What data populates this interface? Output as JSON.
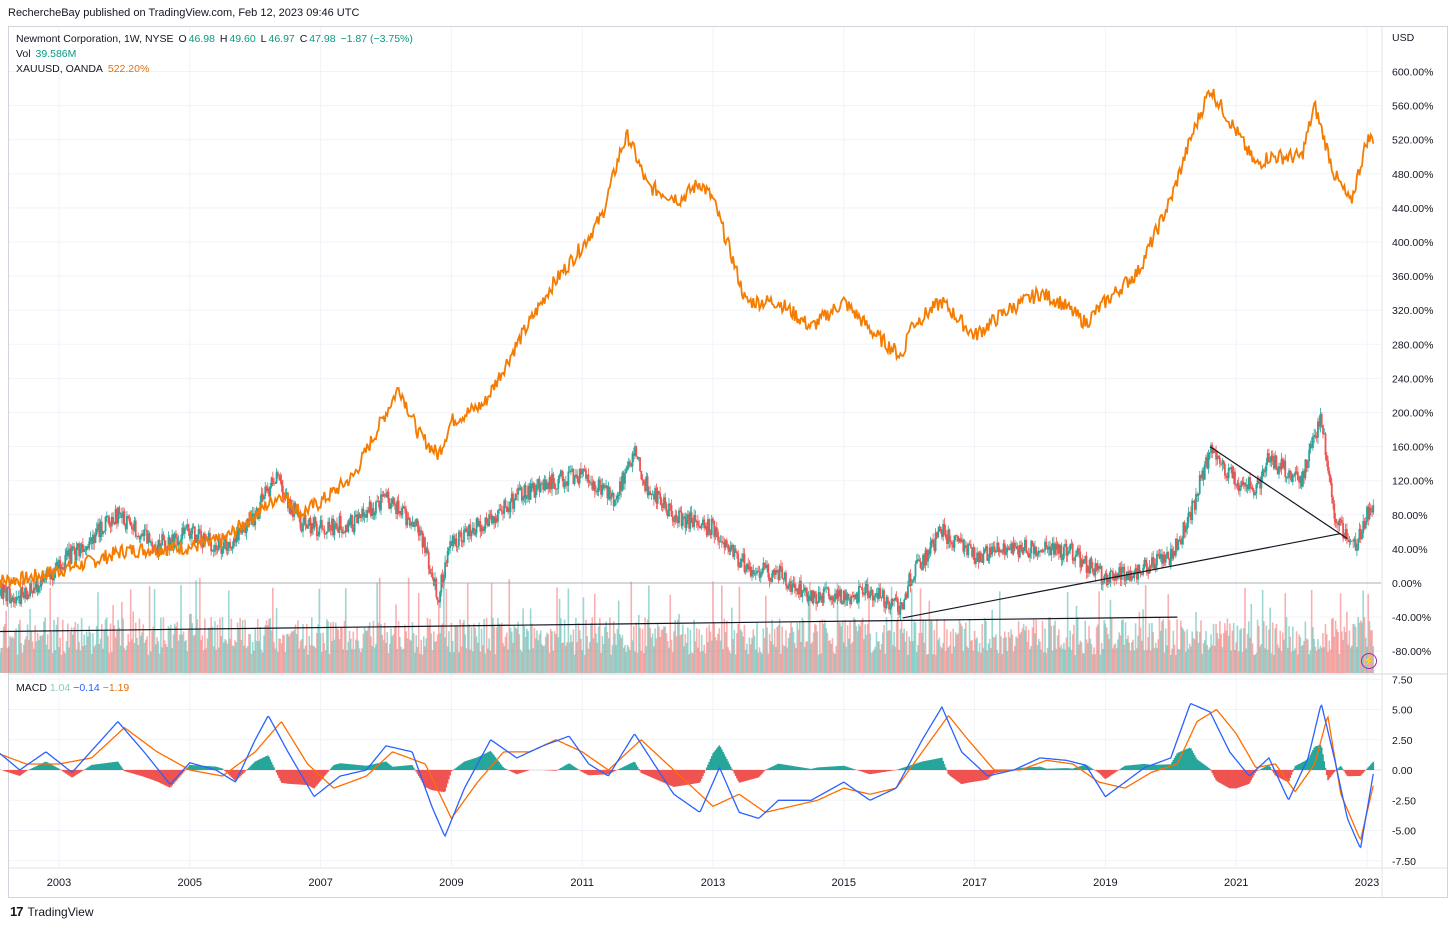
{
  "publisher_line": "RechercheBay published on TradingView.com, Feb 12, 2023 09:46 UTC",
  "legend": {
    "symbol": "Newmont Corporation, 1W, NYSE",
    "o_label": "O",
    "o_value": "46.98",
    "h_label": "H",
    "h_value": "49.60",
    "l_label": "L",
    "l_value": "46.97",
    "c_label": "C",
    "c_value": "47.98",
    "change": "−1.87 (−3.75%)",
    "vol_label": "Vol",
    "vol_value": "39.586M",
    "compare_label": "XAUUSD, OANDA",
    "compare_value": "522.20%"
  },
  "macd_legend": {
    "label": "MACD",
    "hist": "1.04",
    "macd": "−0.14",
    "signal": "−1.19"
  },
  "footer": {
    "brand": "TradingView",
    "logo": "17"
  },
  "colors": {
    "gold": "#f57c00",
    "up": "#26a69a",
    "down": "#ef5350",
    "macd": "#2962ff",
    "signal": "#ff6d00",
    "hist_up": "#26a69a",
    "hist_down": "#ef5350"
  },
  "icons": [
    "tradingview-logo-icon",
    "flash-icon"
  ],
  "chart_data": [
    {
      "type": "line",
      "unit_label": "USD",
      "x_ticks": [
        "2003",
        "2005",
        "2007",
        "2009",
        "2011",
        "2013",
        "2015",
        "2017",
        "2019",
        "2021",
        "2023"
      ],
      "y_ticks": [
        "600.00%",
        "560.00%",
        "520.00%",
        "480.00%",
        "440.00%",
        "400.00%",
        "360.00%",
        "320.00%",
        "280.00%",
        "240.00%",
        "200.00%",
        "160.00%",
        "120.00%",
        "80.00%",
        "40.00%",
        "0.00%",
        "-40.00%",
        "-80.00%"
      ],
      "ylim": [
        -100,
        630
      ],
      "series": [
        {
          "name": "XAUUSD, OANDA",
          "x": [
            2002.0,
            2002.5,
            2003.0,
            2003.5,
            2004.0,
            2004.5,
            2005.0,
            2005.5,
            2006.0,
            2006.4,
            2006.7,
            2007.0,
            2007.5,
            2008.0,
            2008.2,
            2008.5,
            2008.8,
            2009.0,
            2009.5,
            2010.0,
            2010.5,
            2011.0,
            2011.3,
            2011.6,
            2011.7,
            2012.0,
            2012.5,
            2012.8,
            2013.0,
            2013.3,
            2013.5,
            2014.0,
            2014.5,
            2015.0,
            2015.5,
            2015.9,
            2016.0,
            2016.5,
            2017.0,
            2017.5,
            2018.0,
            2018.3,
            2018.7,
            2019.0,
            2019.5,
            2020.0,
            2020.3,
            2020.6,
            2021.0,
            2021.3,
            2021.5,
            2022.0,
            2022.2,
            2022.5,
            2022.75,
            2023.0,
            2023.1
          ],
          "values": [
            2,
            5,
            15,
            25,
            38,
            40,
            42,
            50,
            80,
            105,
            82,
            95,
            125,
            200,
            230,
            175,
            150,
            190,
            210,
            280,
            345,
            395,
            430,
            510,
            525,
            465,
            450,
            470,
            450,
            380,
            330,
            330,
            300,
            330,
            290,
            265,
            300,
            330,
            290,
            320,
            340,
            330,
            305,
            330,
            365,
            450,
            520,
            580,
            530,
            490,
            500,
            500,
            560,
            480,
            445,
            520,
            522
          ]
        },
        {
          "name": "Newmont Corporation, 1W, NYSE",
          "x": [
            2002.0,
            2002.5,
            2003.0,
            2003.5,
            2003.9,
            2004.5,
            2005.0,
            2005.5,
            2006.0,
            2006.3,
            2006.7,
            2007.0,
            2007.5,
            2008.0,
            2008.5,
            2008.8,
            2009.0,
            2009.5,
            2010.0,
            2010.5,
            2011.0,
            2011.5,
            2011.8,
            2012.0,
            2012.5,
            2013.0,
            2013.5,
            2014.0,
            2014.5,
            2015.0,
            2015.5,
            2015.9,
            2016.0,
            2016.5,
            2017.0,
            2017.5,
            2018.0,
            2018.5,
            2019.0,
            2019.5,
            2020.0,
            2020.3,
            2020.6,
            2021.0,
            2021.3,
            2021.5,
            2022.0,
            2022.3,
            2022.5,
            2022.8,
            2023.0,
            2023.1
          ],
          "values": [
            -10,
            -15,
            20,
            55,
            80,
            45,
            60,
            40,
            80,
            125,
            70,
            65,
            70,
            100,
            65,
            -15,
            50,
            70,
            100,
            120,
            125,
            100,
            155,
            110,
            75,
            65,
            20,
            10,
            -15,
            -15,
            -10,
            -35,
            5,
            60,
            30,
            40,
            40,
            35,
            5,
            15,
            30,
            80,
            155,
            120,
            110,
            145,
            120,
            195,
            80,
            40,
            80,
            85
          ]
        }
      ],
      "trendlines": [
        {
          "from": [
            2002.0,
            -57
          ],
          "to": [
            2020.1,
            -40
          ]
        },
        {
          "from": [
            2015.9,
            -41
          ],
          "to": [
            2022.6,
            58
          ]
        },
        {
          "from": [
            2020.6,
            160
          ],
          "to": [
            2022.7,
            52
          ]
        }
      ]
    },
    {
      "type": "line",
      "title": "MACD",
      "y_ticks": [
        "7.50",
        "5.00",
        "2.50",
        "0.00",
        "-2.50",
        "-5.00",
        "-7.50"
      ],
      "ylim": [
        -8,
        7.6
      ],
      "series": [
        {
          "name": "MACD",
          "x": [
            2002.0,
            2002.4,
            2002.8,
            2003.2,
            2003.6,
            2003.9,
            2004.3,
            2004.7,
            2005.0,
            2005.4,
            2005.7,
            2006.0,
            2006.2,
            2006.5,
            2006.9,
            2007.3,
            2007.7,
            2008.0,
            2008.4,
            2008.7,
            2008.9,
            2009.2,
            2009.6,
            2010.0,
            2010.4,
            2010.8,
            2011.1,
            2011.4,
            2011.8,
            2012.1,
            2012.4,
            2012.8,
            2013.1,
            2013.4,
            2013.7,
            2014.0,
            2014.5,
            2015.0,
            2015.4,
            2015.8,
            2016.2,
            2016.5,
            2016.8,
            2017.2,
            2017.6,
            2018.0,
            2018.4,
            2018.7,
            2019.0,
            2019.3,
            2019.6,
            2020.0,
            2020.3,
            2020.6,
            2020.9,
            2021.2,
            2021.5,
            2021.8,
            2022.1,
            2022.3,
            2022.5,
            2022.7,
            2022.9,
            2023.1
          ],
          "values": [
            1.8,
            0.0,
            1.5,
            -0.2,
            2.2,
            4.0,
            1.5,
            -1.2,
            0.6,
            0.0,
            -1.0,
            2.5,
            4.5,
            1.5,
            -2.2,
            -0.5,
            0.0,
            2.0,
            1.5,
            -3.0,
            -5.5,
            -1.5,
            2.5,
            1.0,
            2.0,
            2.8,
            0.5,
            -0.5,
            3.0,
            0.5,
            -2.0,
            -3.5,
            0.2,
            -3.5,
            -4.0,
            -2.5,
            -2.5,
            -1.0,
            -2.5,
            -1.5,
            2.5,
            5.2,
            1.5,
            -0.5,
            0.0,
            1.0,
            0.8,
            0.4,
            -2.2,
            -1.0,
            0.2,
            1.0,
            5.5,
            4.8,
            1.5,
            -0.5,
            1.0,
            -2.5,
            1.0,
            5.5,
            1.0,
            -4.0,
            -6.5,
            -0.2
          ]
        },
        {
          "name": "Signal",
          "x": [
            2002.0,
            2002.5,
            2003.0,
            2003.5,
            2004.0,
            2004.5,
            2005.0,
            2005.5,
            2006.0,
            2006.4,
            2006.8,
            2007.2,
            2007.7,
            2008.1,
            2008.6,
            2009.0,
            2009.4,
            2009.8,
            2010.2,
            2010.6,
            2011.0,
            2011.4,
            2011.9,
            2012.3,
            2012.7,
            2013.0,
            2013.4,
            2013.8,
            2014.2,
            2014.6,
            2015.0,
            2015.4,
            2015.8,
            2016.2,
            2016.6,
            2016.9,
            2017.3,
            2017.7,
            2018.1,
            2018.5,
            2018.9,
            2019.3,
            2019.7,
            2020.1,
            2020.4,
            2020.7,
            2021.0,
            2021.3,
            2021.6,
            2021.9,
            2022.2,
            2022.4,
            2022.6,
            2022.9,
            2023.1
          ],
          "values": [
            1.5,
            0.5,
            0.5,
            1.0,
            3.5,
            1.5,
            0.0,
            -0.5,
            1.5,
            4.0,
            0.5,
            -1.5,
            -0.5,
            1.5,
            0.5,
            -4.0,
            -1.0,
            1.5,
            1.5,
            2.5,
            1.5,
            0.0,
            2.5,
            0.5,
            -1.5,
            -3.0,
            -2.0,
            -3.5,
            -3.0,
            -2.5,
            -1.5,
            -2.0,
            -1.5,
            1.5,
            4.5,
            2.5,
            0.0,
            0.0,
            0.8,
            0.5,
            -1.0,
            -1.5,
            -0.2,
            0.5,
            4.0,
            5.0,
            3.0,
            0.2,
            0.5,
            -1.8,
            0.5,
            4.5,
            -2.0,
            -5.8,
            -1.2
          ]
        }
      ]
    }
  ]
}
